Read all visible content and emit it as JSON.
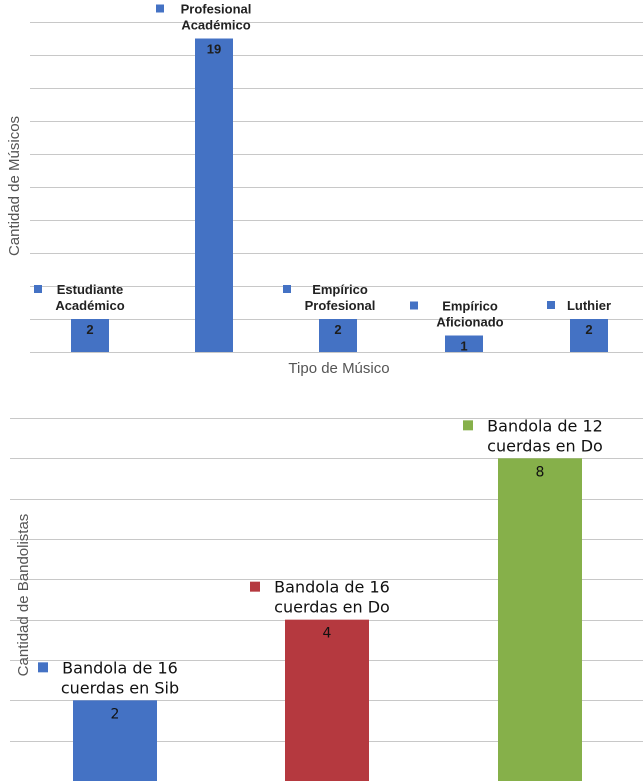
{
  "chart_data": [
    {
      "type": "bar",
      "title": "",
      "xlabel": "Tipo de Músico",
      "ylabel": "Cantidad de Músicos",
      "ylim": [
        0,
        20
      ],
      "grid": true,
      "legend": "per-bar labels",
      "categories": [
        [
          "Estudiante",
          "Académico"
        ],
        [
          "Profesional",
          "Académico"
        ],
        [
          "Empírico",
          "Profesional"
        ],
        [
          "Empírico",
          "Aficionado"
        ],
        [
          "Luthier"
        ]
      ],
      "values": [
        2,
        19,
        2,
        1,
        2
      ],
      "colors": [
        "#4472c4",
        "#4472c4",
        "#4472c4",
        "#4472c4",
        "#4472c4"
      ]
    },
    {
      "type": "bar",
      "title": "",
      "xlabel": "",
      "ylabel": "Cantidad de Bandolistas",
      "ylim": [
        0,
        9
      ],
      "grid": true,
      "legend": "per-bar labels",
      "categories": [
        [
          "Bandola de 16",
          "cuerdas en Sib"
        ],
        [
          "Bandola de 16",
          "cuerdas en Do"
        ],
        [
          "Bandola de 12",
          "cuerdas en Do"
        ]
      ],
      "values": [
        2,
        4,
        8
      ],
      "colors": [
        "#4472c4",
        "#b5393f",
        "#86b04a"
      ]
    }
  ]
}
